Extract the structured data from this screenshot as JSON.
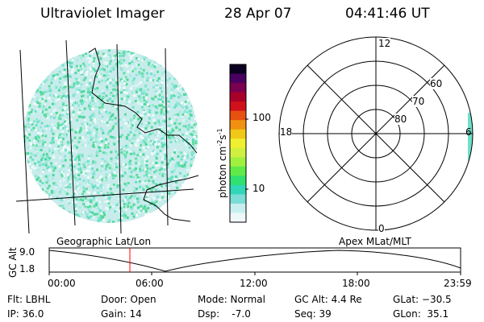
{
  "header": {
    "title": "Ultraviolet Imager",
    "date": "28 Apr 07",
    "time": "04:41:46 UT"
  },
  "colorbar": {
    "unit_label": "photon cm",
    "unit_sup1": "-2",
    "unit_mid": "s",
    "unit_sup2": "-1",
    "ticks": [
      "100",
      "10"
    ],
    "colors": [
      "#0a0020",
      "#4a0060",
      "#7a0050",
      "#a80028",
      "#d0101a",
      "#e85010",
      "#f09010",
      "#f0c818",
      "#f0f030",
      "#d0f040",
      "#a0f040",
      "#60ea48",
      "#30e070",
      "#30d8b8",
      "#7cdcd8",
      "#c8eef0",
      "#eef8f8"
    ]
  },
  "polar": {
    "labels": {
      "top": "12",
      "bottom": "0",
      "left": "18",
      "right": "6"
    },
    "rings": [
      "60",
      "70",
      "80"
    ]
  },
  "projections": {
    "left": "Geographic Lat/Lon",
    "right": "Apex MLat/MLT"
  },
  "timeline": {
    "ylabel": "GC Alt",
    "y_top": "9.0",
    "y_bottom": "1.8",
    "x_ticks": [
      "00:00",
      "06:00",
      "12:00",
      "18:00",
      "23:59"
    ],
    "marker_color": "#ff0000"
  },
  "footer": {
    "filter": "Flt: LBHL",
    "ip": "IP: 36.0",
    "door": "Door: Open",
    "gain": "Gain: 14",
    "mode": "Mode: Normal",
    "dsp": "Dsp:    -7.0",
    "gcalt": "GC Alt: 4.4 Re",
    "seq": "Seq: 39",
    "glat": "GLat: −30.5",
    "glon": "GLon:  35.1"
  }
}
